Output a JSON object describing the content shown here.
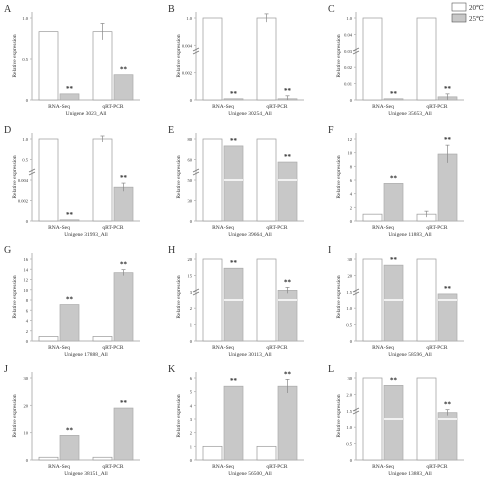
{
  "legend": [
    {
      "label": "20℃",
      "color": "#ffffff"
    },
    {
      "label": "25℃",
      "color": "#c8c8c8"
    }
  ],
  "chart_data": [
    {
      "letter": "A",
      "type": "bar",
      "ylabel": "Relative expression",
      "xlabel": "Unigene 3023_All",
      "categories": [
        "RNA-Seq",
        "qRT-PCR"
      ],
      "series": [
        {
          "name": "20℃",
          "values": [
            1.0,
            1.0
          ],
          "errors": [
            0,
            0.12
          ]
        },
        {
          "name": "25℃",
          "values": [
            0.09,
            0.37
          ],
          "errors": [
            0,
            0
          ]
        }
      ],
      "ylim": [
        0,
        1.2
      ],
      "yticks": [
        "0",
        "0.5",
        "1.0"
      ],
      "stars": [
        "**",
        "**"
      ],
      "broken_axis": false
    },
    {
      "letter": "B",
      "type": "bar",
      "ylabel": "Relative expression",
      "xlabel": "Unigene 30254_All",
      "categories": [
        "RNA-Seq",
        "qRT-PCR"
      ],
      "series": [
        {
          "name": "20℃",
          "values": [
            1.0,
            1.0
          ],
          "errors": [
            0,
            0.05
          ]
        },
        {
          "name": "25℃",
          "values": [
            0.003,
            0.004
          ],
          "errors": [
            0,
            0.0003
          ]
        }
      ],
      "ylim": [
        0,
        1.0
      ],
      "yticks": [
        "0",
        "0.002",
        "0.004",
        "1.0"
      ],
      "stars": [
        "**",
        "**"
      ],
      "broken_axis": true
    },
    {
      "letter": "C",
      "type": "bar",
      "ylabel": "Relative expression",
      "xlabel": "Unigene 35653_All",
      "categories": [
        "RNA-Seq",
        "qRT-PCR"
      ],
      "series": [
        {
          "name": "20℃",
          "values": [
            1.0,
            1.0
          ],
          "errors": [
            0,
            0
          ]
        },
        {
          "name": "25℃",
          "values": [
            0.01,
            0.07
          ],
          "errors": [
            0,
            0.01
          ]
        }
      ],
      "ylim": [
        0,
        1.0
      ],
      "yticks": [
        "0",
        "0.01",
        "0.02",
        "0.03",
        "0.04",
        "1.0"
      ],
      "stars": [
        "**",
        "**"
      ],
      "broken_axis": true
    },
    {
      "letter": "D",
      "type": "bar",
      "ylabel": "Relative expression",
      "xlabel": "Unigene 31993_All",
      "categories": [
        "RNA-Seq",
        "qRT-PCR"
      ],
      "series": [
        {
          "name": "20℃",
          "values": [
            1.0,
            1.0
          ],
          "errors": [
            0,
            0.03
          ]
        },
        {
          "name": "25℃",
          "values": [
            0.004,
            0.75
          ],
          "errors": [
            0,
            0.05
          ]
        }
      ],
      "ylim": [
        0,
        1.0
      ],
      "yticks": [
        "0",
        "0.002",
        "0.004",
        "0.5",
        "1.0"
      ],
      "stars": [
        "**",
        "**"
      ],
      "broken_axis": true
    },
    {
      "letter": "E",
      "type": "bar",
      "ylabel": "Relative expression",
      "xlabel": "Unigene 39664_All",
      "categories": [
        "RNA-Seq",
        "qRT-PCR"
      ],
      "series": [
        {
          "name": "20℃",
          "values": [
            1,
            1
          ],
          "errors": [
            0,
            0
          ]
        },
        {
          "name": "25℃",
          "values": [
            65,
            30
          ],
          "errors": [
            0,
            0
          ]
        }
      ],
      "ylim": [
        0,
        80
      ],
      "yticks": [
        "0",
        "30",
        "50",
        "60",
        "80"
      ],
      "stars": [
        "**",
        "**"
      ],
      "broken_axis": true
    },
    {
      "letter": "F",
      "type": "bar",
      "ylabel": "Relative expression",
      "xlabel": "Unigene 11883_All",
      "categories": [
        "RNA-Seq",
        "qRT-PCR"
      ],
      "series": [
        {
          "name": "20℃",
          "values": [
            1,
            1
          ],
          "errors": [
            0,
            0.1
          ]
        },
        {
          "name": "25℃",
          "values": [
            5.5,
            9.8
          ],
          "errors": [
            0,
            1.3
          ]
        }
      ],
      "ylim": [
        0,
        12
      ],
      "yticks": [
        "0",
        "2",
        "4",
        "6",
        "8",
        "10",
        "12"
      ],
      "stars": [
        "**",
        "**"
      ],
      "broken_axis": false
    },
    {
      "letter": "G",
      "type": "bar",
      "ylabel": "Relative expression",
      "xlabel": "Unigene 17888_All",
      "categories": [
        "RNA-Seq",
        "qRT-PCR"
      ],
      "series": [
        {
          "name": "20℃",
          "values": [
            1,
            1
          ],
          "errors": [
            0,
            0
          ]
        },
        {
          "name": "25℃",
          "values": [
            8,
            15
          ],
          "errors": [
            0,
            0.5
          ]
        }
      ],
      "ylim": [
        0,
        18
      ],
      "yticks": [
        "0",
        "2",
        "4",
        "6",
        "8",
        "10",
        "12",
        "14",
        "16"
      ],
      "stars": [
        "**",
        "**"
      ],
      "broken_axis": false
    },
    {
      "letter": "H",
      "type": "bar",
      "ylabel": "Relative expression",
      "xlabel": "Unigene 30113_All",
      "categories": [
        "RNA-Seq",
        "qRT-PCR"
      ],
      "series": [
        {
          "name": "20℃",
          "values": [
            1,
            1
          ],
          "errors": [
            0,
            0
          ]
        },
        {
          "name": "25℃",
          "values": [
            15,
            3
          ],
          "errors": [
            0,
            0.3
          ]
        }
      ],
      "ylim": [
        0,
        20
      ],
      "yticks": [
        "0",
        "1",
        "2",
        "3",
        "15",
        "20"
      ],
      "stars": [
        "**",
        "**"
      ],
      "broken_axis": true
    },
    {
      "letter": "I",
      "type": "bar",
      "ylabel": "Relative expression",
      "xlabel": "Unigene 58596_All",
      "categories": [
        "RNA-Seq",
        "qRT-PCR"
      ],
      "series": [
        {
          "name": "20℃",
          "values": [
            1,
            1
          ],
          "errors": [
            0,
            0
          ]
        },
        {
          "name": "25℃",
          "values": [
            25,
            1.6
          ],
          "errors": [
            0,
            0
          ]
        }
      ],
      "ylim": [
        0,
        30
      ],
      "yticks": [
        "0",
        "0.5",
        "1.0",
        "1.5",
        "20",
        "30"
      ],
      "stars": [
        "**",
        "**"
      ],
      "broken_axis": true
    },
    {
      "letter": "J",
      "type": "bar",
      "ylabel": "Relative expression",
      "xlabel": "Unigene 38151_All",
      "categories": [
        "RNA-Seq",
        "qRT-PCR"
      ],
      "series": [
        {
          "name": "20℃",
          "values": [
            1,
            1
          ],
          "errors": [
            0,
            0
          ]
        },
        {
          "name": "25℃",
          "values": [
            9,
            19
          ],
          "errors": [
            0,
            0
          ]
        }
      ],
      "ylim": [
        0,
        30
      ],
      "yticks": [
        "0",
        "10",
        "20",
        "30"
      ],
      "stars": [
        "**",
        "**"
      ],
      "broken_axis": false
    },
    {
      "letter": "K",
      "type": "bar",
      "ylabel": "Relative expression",
      "xlabel": "Unigene 56500_All",
      "categories": [
        "RNA-Seq",
        "qRT-PCR"
      ],
      "series": [
        {
          "name": "20℃",
          "values": [
            1,
            1
          ],
          "errors": [
            0,
            0
          ]
        },
        {
          "name": "25℃",
          "values": [
            5.4,
            5.4
          ],
          "errors": [
            0,
            0.5
          ]
        }
      ],
      "ylim": [
        0,
        6
      ],
      "yticks": [
        "0",
        "1",
        "2",
        "3",
        "4",
        "5",
        "6"
      ],
      "stars": [
        "**",
        "**"
      ],
      "broken_axis": false
    },
    {
      "letter": "L",
      "type": "bar",
      "ylabel": "Relative expression",
      "xlabel": "Unigene 13883_All",
      "categories": [
        "RNA-Seq",
        "qRT-PCR"
      ],
      "series": [
        {
          "name": "20℃",
          "values": [
            1,
            1
          ],
          "errors": [
            0,
            0
          ]
        },
        {
          "name": "25℃",
          "values": [
            24,
            1.8
          ],
          "errors": [
            0,
            0.1
          ]
        }
      ],
      "ylim": [
        0,
        30
      ],
      "yticks": [
        "0",
        "0.5",
        "1.0",
        "1.5",
        "2.0",
        "30"
      ],
      "stars": [
        "**",
        "**"
      ],
      "broken_axis": true
    }
  ]
}
